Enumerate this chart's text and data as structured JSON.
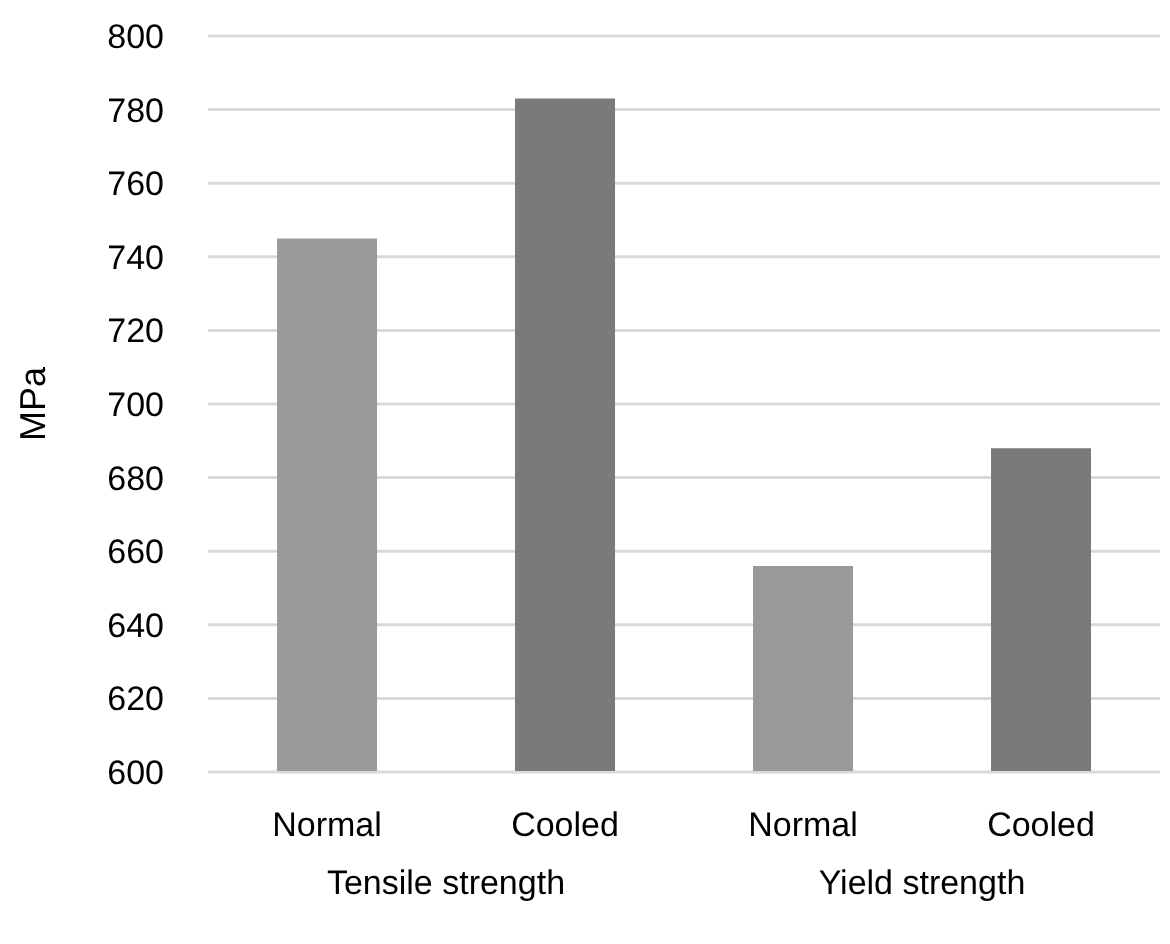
{
  "chart_data": {
    "type": "bar",
    "categories": [
      "Normal",
      "Cooled",
      "Normal",
      "Cooled"
    ],
    "values": [
      745,
      783,
      656,
      688
    ],
    "colors": [
      "#999999",
      "#7a7a7a",
      "#999999",
      "#7a7a7a"
    ],
    "ylabel": "MPa",
    "ylim": [
      600,
      800
    ],
    "yticks": [
      600,
      620,
      640,
      660,
      680,
      700,
      720,
      740,
      760,
      780,
      800
    ],
    "grid": "y",
    "legend": false,
    "annotations": [
      "Tensile strength",
      "Yield strength"
    ]
  }
}
